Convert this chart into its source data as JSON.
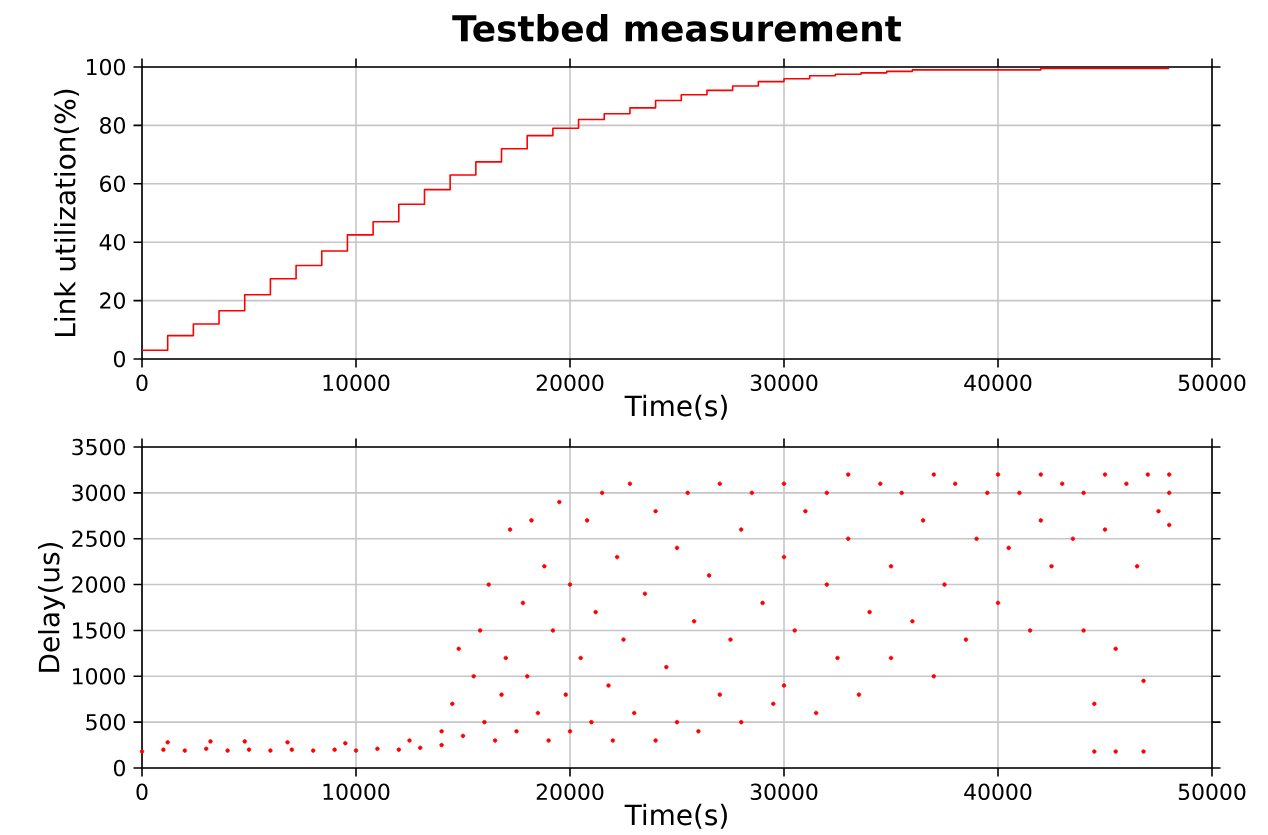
{
  "chart_data": [
    {
      "type": "step",
      "title": "Testbed measurement",
      "xlabel": "Time(s)",
      "ylabel": "Link utilization(%)",
      "color": "#ff0000",
      "grid": true,
      "x": [
        0,
        1200,
        2400,
        3600,
        4800,
        6000,
        7200,
        8400,
        9600,
        10800,
        12000,
        13200,
        14400,
        15600,
        16800,
        18000,
        19200,
        20400,
        21600,
        22800,
        24000,
        25200,
        26400,
        27600,
        28800,
        30000,
        31200,
        32400,
        33600,
        34800,
        36000,
        37200,
        38400,
        39600,
        40800,
        42000,
        43200,
        44400,
        45600,
        46800,
        48000
      ],
      "values": [
        3,
        8,
        12,
        16.5,
        22,
        27.5,
        32,
        37,
        42.5,
        47,
        53,
        58,
        63,
        67.5,
        72,
        76.5,
        79,
        82,
        84,
        86,
        88.5,
        90.5,
        92,
        93.5,
        95,
        96,
        97,
        97.5,
        98,
        98.5,
        99,
        99,
        99,
        99,
        99,
        99.5,
        99.5,
        99.5,
        99.5,
        99.5,
        99.5
      ],
      "xlim": [
        0,
        50000
      ],
      "ylim": [
        0,
        100
      ],
      "xticks": [
        0,
        10000,
        20000,
        30000,
        40000,
        50000
      ],
      "yticks": [
        0,
        20,
        40,
        60,
        80,
        100
      ]
    },
    {
      "type": "scatter",
      "xlabel": "Time(s)",
      "ylabel": "Delay(us)",
      "color": "#ff0000",
      "grid": true,
      "x": [
        0,
        1000,
        2000,
        3000,
        4000,
        5000,
        6000,
        7000,
        8000,
        9000,
        10000,
        11000,
        12000,
        13000,
        1200,
        3200,
        4800,
        6800,
        9500,
        12500,
        14000,
        14000,
        14500,
        14800,
        15000,
        15500,
        15800,
        16000,
        16200,
        16500,
        16800,
        17000,
        17200,
        17500,
        17800,
        18000,
        18200,
        18500,
        18800,
        19000,
        19200,
        19500,
        19800,
        20000,
        20000,
        20500,
        20800,
        21000,
        21200,
        21500,
        21800,
        22000,
        22200,
        22500,
        22800,
        23000,
        23500,
        24000,
        24000,
        24500,
        25000,
        25000,
        25500,
        25800,
        26000,
        26500,
        27000,
        27000,
        27500,
        28000,
        28000,
        28500,
        29000,
        29500,
        30000,
        30000,
        30000,
        30500,
        31000,
        31500,
        32000,
        32000,
        32500,
        33000,
        33000,
        33500,
        34000,
        34500,
        35000,
        35000,
        35500,
        36000,
        36500,
        37000,
        37000,
        37500,
        38000,
        38500,
        39000,
        39500,
        40000,
        40000,
        40500,
        41000,
        41500,
        42000,
        42000,
        42500,
        43000,
        43500,
        44000,
        44000,
        44500,
        44500,
        45000,
        45000,
        45500,
        45500,
        46000,
        46500,
        46800,
        46800,
        47000,
        47500,
        48000,
        48000,
        48000
      ],
      "values": [
        180,
        200,
        190,
        210,
        190,
        200,
        190,
        200,
        190,
        200,
        190,
        210,
        200,
        220,
        280,
        290,
        290,
        280,
        270,
        300,
        250,
        400,
        700,
        1300,
        350,
        1000,
        1500,
        500,
        2000,
        300,
        800,
        1200,
        2600,
        400,
        1800,
        1000,
        2700,
        600,
        2200,
        300,
        1500,
        2900,
        800,
        400,
        2000,
        1200,
        2700,
        500,
        1700,
        3000,
        900,
        300,
        2300,
        1400,
        3100,
        600,
        1900,
        300,
        2800,
        1100,
        2400,
        500,
        3000,
        1600,
        400,
        2100,
        3100,
        800,
        1400,
        2600,
        500,
        3000,
        1800,
        700,
        2300,
        3100,
        900,
        1500,
        2800,
        600,
        3000,
        2000,
        1200,
        3200,
        2500,
        800,
        1700,
        3100,
        2200,
        1200,
        3000,
        1600,
        2700,
        3200,
        1000,
        2000,
        3100,
        1400,
        2500,
        3000,
        1800,
        3200,
        2400,
        3000,
        1500,
        2700,
        3200,
        2200,
        3100,
        2500,
        3000,
        1500,
        700,
        180,
        3200,
        2600,
        1300,
        180,
        3100,
        2200,
        950,
        180,
        3200,
        2800,
        3000,
        3200,
        2650
      ],
      "xlim": [
        0,
        50000
      ],
      "ylim": [
        0,
        3500
      ],
      "xticks": [
        0,
        10000,
        20000,
        30000,
        40000,
        50000
      ],
      "yticks": [
        0,
        500,
        1000,
        1500,
        2000,
        2500,
        3000,
        3500
      ]
    }
  ]
}
